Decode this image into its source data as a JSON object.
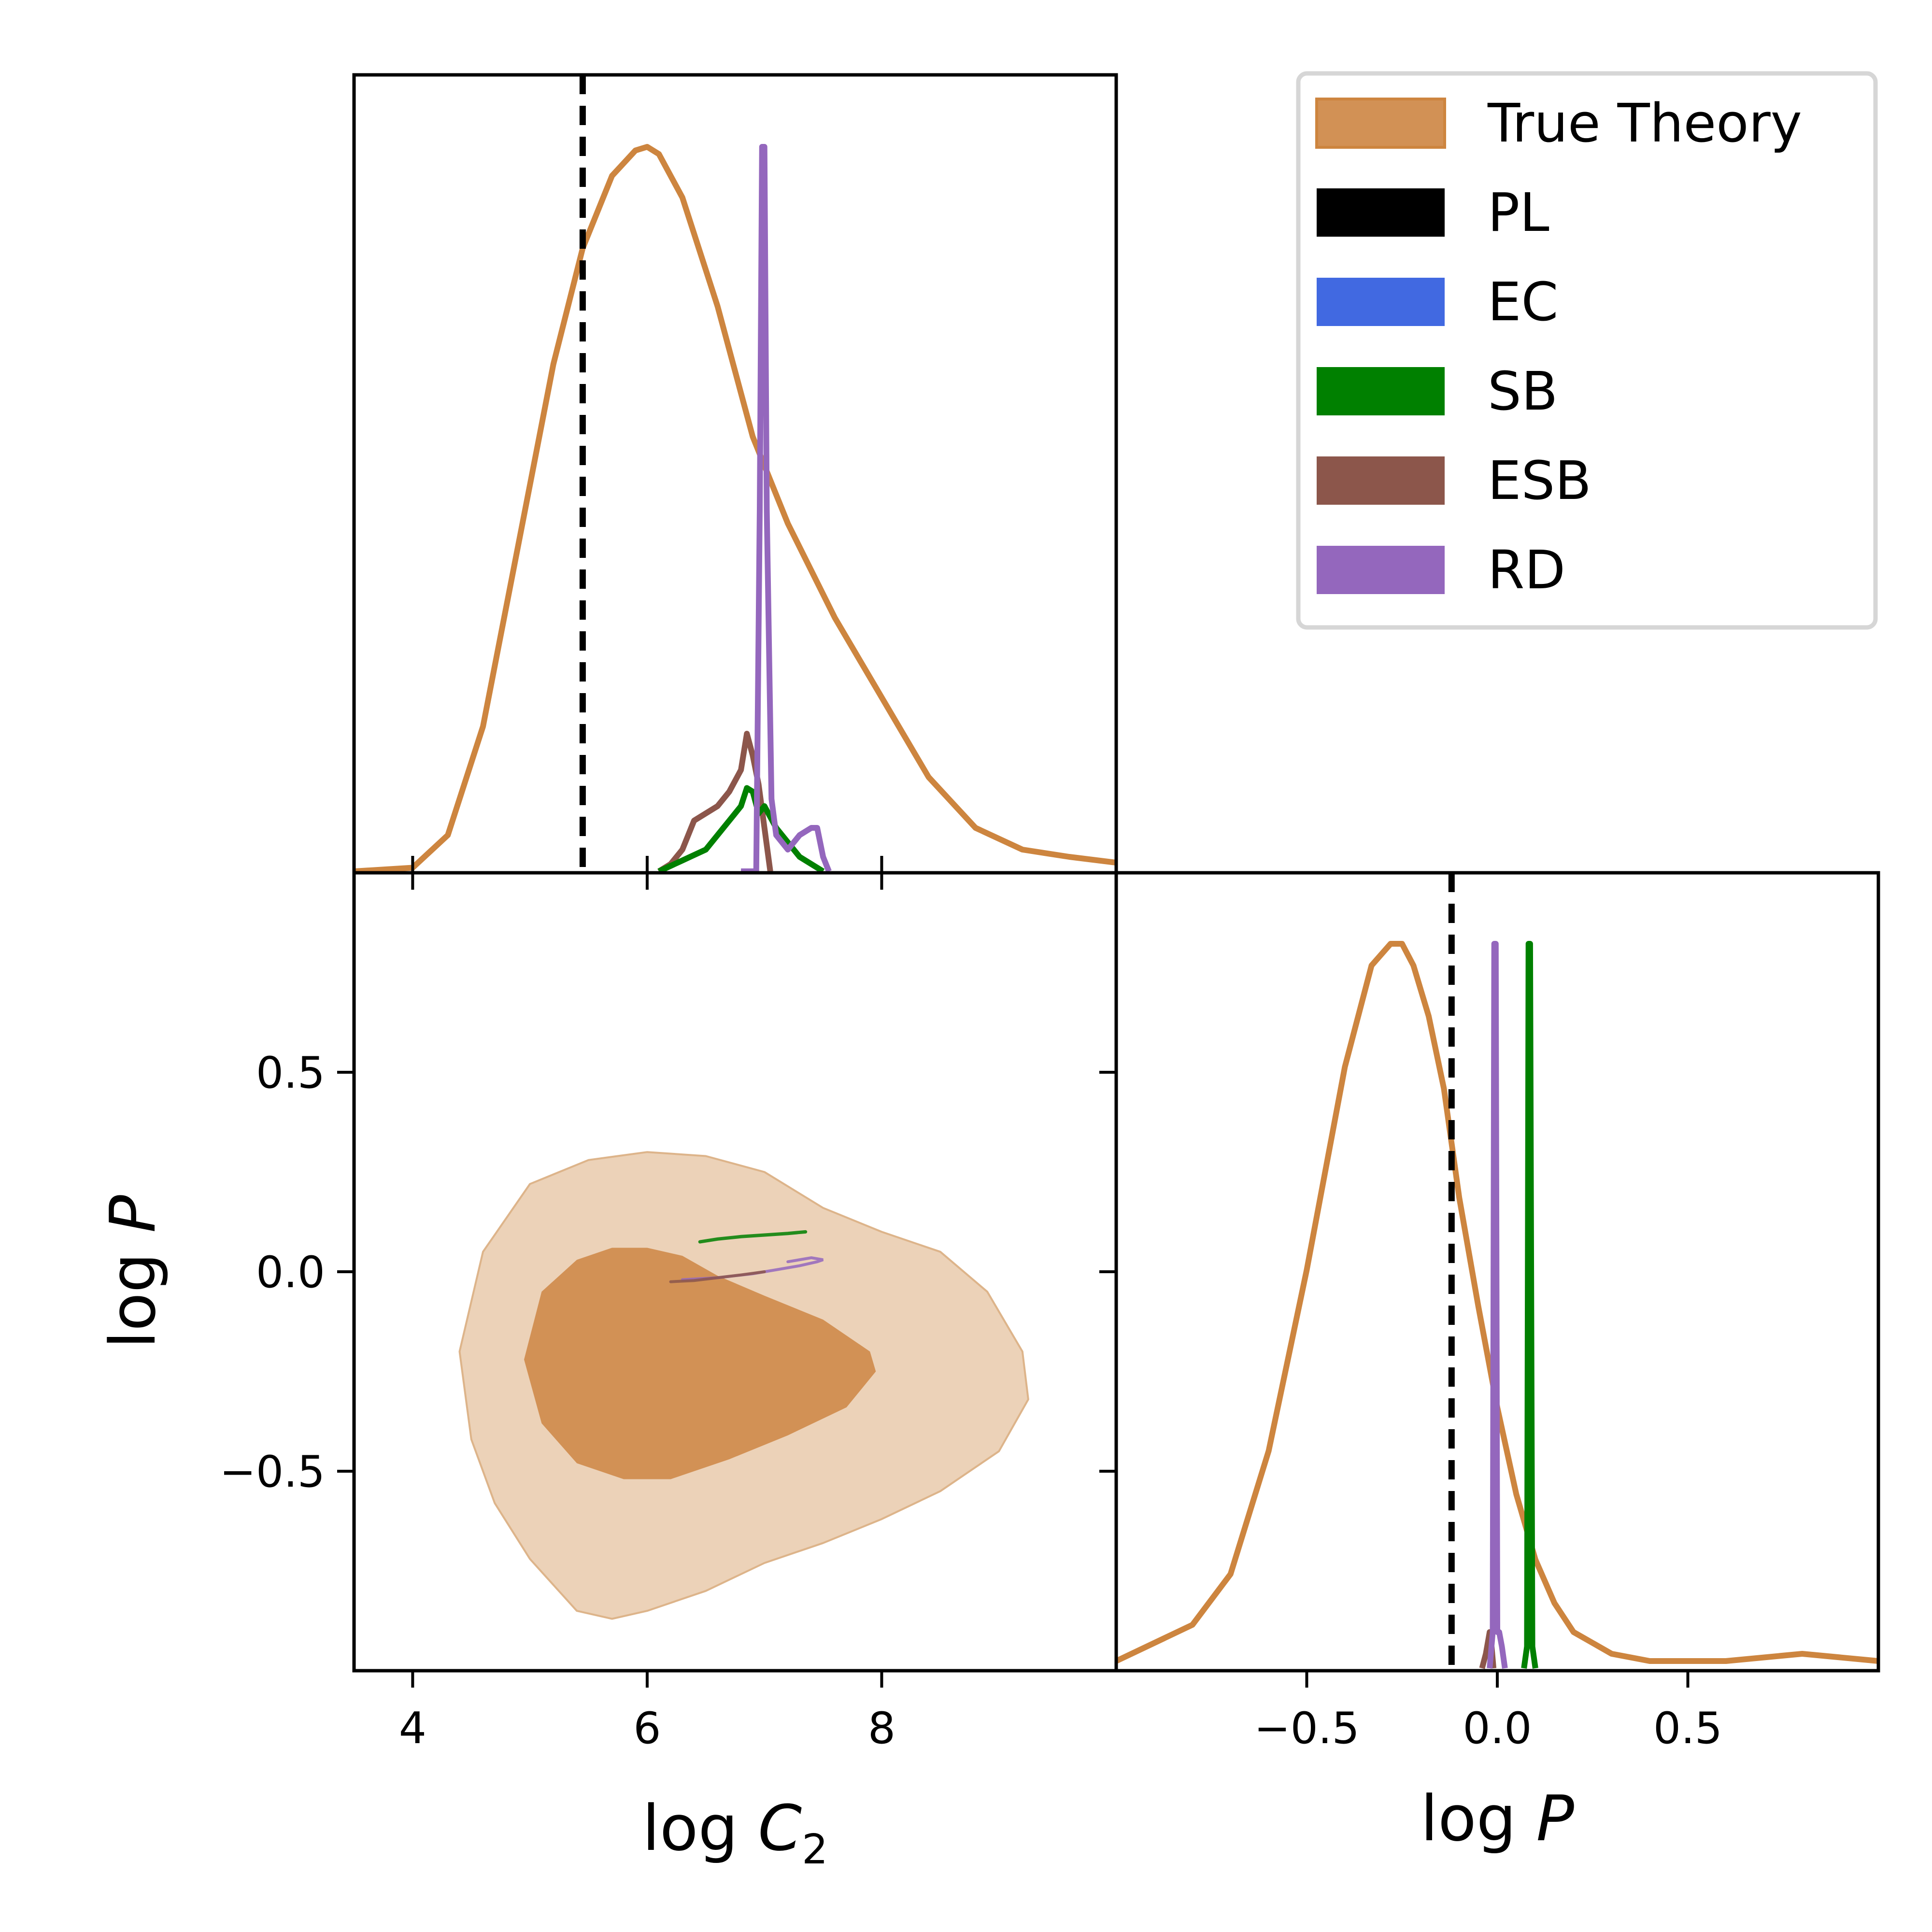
{
  "chart_data": [
    {
      "type": "line",
      "panel": "marginal-logC2",
      "xlim": [
        3.5,
        10.0
      ],
      "x_ticks": [
        4,
        6,
        8
      ],
      "dashed_reference_x": 5.45,
      "series": [
        {
          "name": "True Theory",
          "color": "#cd853f",
          "x": [
            3.5,
            4.0,
            4.3,
            4.6,
            4.9,
            5.2,
            5.45,
            5.7,
            5.9,
            6.0,
            6.1,
            6.3,
            6.6,
            6.9,
            7.2,
            7.6,
            8.0,
            8.4,
            8.8,
            9.2,
            9.6,
            10.0
          ],
          "y": [
            0.0,
            0.005,
            0.05,
            0.2,
            0.45,
            0.7,
            0.86,
            0.96,
            0.995,
            1.0,
            0.99,
            0.93,
            0.78,
            0.6,
            0.48,
            0.35,
            0.24,
            0.13,
            0.06,
            0.03,
            0.02,
            0.012
          ]
        },
        {
          "name": "ESB",
          "color": "#8c564b",
          "x": [
            6.1,
            6.2,
            6.3,
            6.4,
            6.5,
            6.6,
            6.7,
            6.8,
            6.85,
            6.9,
            6.95,
            7.0,
            7.05
          ],
          "y": [
            0.0,
            0.01,
            0.03,
            0.07,
            0.08,
            0.09,
            0.11,
            0.14,
            0.19,
            0.16,
            0.12,
            0.06,
            0.0
          ]
        },
        {
          "name": "SB",
          "color": "#008000",
          "x": [
            6.1,
            6.3,
            6.5,
            6.6,
            6.7,
            6.8,
            6.85,
            6.9,
            6.95,
            7.0,
            7.1,
            7.2,
            7.3,
            7.4,
            7.5
          ],
          "y": [
            0.0,
            0.015,
            0.03,
            0.05,
            0.07,
            0.09,
            0.115,
            0.11,
            0.08,
            0.09,
            0.06,
            0.04,
            0.02,
            0.01,
            0.0
          ]
        },
        {
          "name": "RD",
          "color": "#9467bd",
          "x": [
            6.8,
            6.93,
            6.96,
            6.98,
            7.0,
            7.02,
            7.06,
            7.1,
            7.2,
            7.3,
            7.4,
            7.45,
            7.5,
            7.55
          ],
          "y": [
            0.0,
            0.0,
            0.5,
            1.0,
            1.0,
            0.5,
            0.1,
            0.05,
            0.03,
            0.05,
            0.06,
            0.06,
            0.02,
            0.0
          ]
        }
      ]
    },
    {
      "type": "area",
      "panel": "joint-logC2-logP",
      "xlim": [
        3.5,
        10.0
      ],
      "ylim": [
        -1.0,
        1.0
      ],
      "x_ticks": [
        4,
        6,
        8
      ],
      "y_ticks": [
        0.5,
        0.0,
        -0.5
      ],
      "x_tick_labels": [
        "4",
        "6",
        "8"
      ],
      "y_tick_labels": [
        "0.5",
        "0.0",
        "−0.5"
      ],
      "xlabel_text": "log",
      "xlabel_symbol": "C",
      "xlabel_subscript": "2",
      "ylabel_text": "log",
      "ylabel_symbol": "P",
      "contours": [
        {
          "name": "True Theory 95%",
          "color": "#ecd2b8",
          "x": [
            4.4,
            4.6,
            5.0,
            5.5,
            6.0,
            6.5,
            7.0,
            7.5,
            8.0,
            8.5,
            8.9,
            9.2,
            9.25,
            9.0,
            8.5,
            8.0,
            7.5,
            7.0,
            6.5,
            6.0,
            5.7,
            5.4,
            5.0,
            4.7,
            4.5,
            4.4
          ],
          "y": [
            -0.2,
            0.05,
            0.22,
            0.28,
            0.3,
            0.29,
            0.25,
            0.16,
            0.1,
            0.05,
            -0.05,
            -0.2,
            -0.32,
            -0.45,
            -0.55,
            -0.62,
            -0.68,
            -0.73,
            -0.8,
            -0.85,
            -0.87,
            -0.85,
            -0.72,
            -0.58,
            -0.42,
            -0.2
          ]
        },
        {
          "name": "True Theory 68%",
          "color": "#d29155",
          "x": [
            4.95,
            5.1,
            5.4,
            5.7,
            6.0,
            6.3,
            6.6,
            7.0,
            7.5,
            7.9,
            7.95,
            7.7,
            7.2,
            6.7,
            6.2,
            5.8,
            5.4,
            5.1,
            4.95
          ],
          "y": [
            -0.22,
            -0.05,
            0.03,
            0.06,
            0.06,
            0.04,
            -0.01,
            -0.06,
            -0.12,
            -0.2,
            -0.25,
            -0.34,
            -0.41,
            -0.47,
            -0.52,
            -0.52,
            -0.48,
            -0.38,
            -0.22
          ]
        }
      ],
      "traces": [
        {
          "name": "SB",
          "color": "#008000",
          "x": [
            6.45,
            6.6,
            6.8,
            7.0,
            7.2,
            7.35
          ],
          "y": [
            0.075,
            0.082,
            0.088,
            0.092,
            0.096,
            0.1
          ]
        },
        {
          "name": "RD",
          "color": "#9467bd",
          "x": [
            6.3,
            6.6,
            6.9,
            7.1,
            7.3,
            7.45,
            7.5,
            7.4,
            7.2
          ],
          "y": [
            -0.02,
            -0.015,
            -0.005,
            0.005,
            0.015,
            0.025,
            0.03,
            0.035,
            0.025
          ]
        },
        {
          "name": "ESB",
          "color": "#8c564b",
          "x": [
            6.2,
            6.4,
            6.6,
            6.8,
            7.0
          ],
          "y": [
            -0.025,
            -0.022,
            -0.015,
            -0.008,
            0.0
          ]
        }
      ]
    },
    {
      "type": "line",
      "panel": "marginal-logP",
      "xlim": [
        -1.0,
        1.0
      ],
      "x_ticks": [
        -0.5,
        0.0,
        0.5
      ],
      "x_tick_labels": [
        "−0.5",
        "0.0",
        "0.5"
      ],
      "xlabel_text": "log",
      "xlabel_symbol": "P",
      "dashed_reference_x": -0.12,
      "series": [
        {
          "name": "True Theory",
          "color": "#cd853f",
          "x": [
            -1.0,
            -0.8,
            -0.7,
            -0.6,
            -0.5,
            -0.4,
            -0.33,
            -0.28,
            -0.25,
            -0.22,
            -0.18,
            -0.14,
            -0.1,
            -0.05,
            0.0,
            0.05,
            0.1,
            0.15,
            0.2,
            0.3,
            0.4,
            0.6,
            0.8,
            1.0
          ],
          "y": [
            0.01,
            0.06,
            0.13,
            0.3,
            0.55,
            0.83,
            0.97,
            1.0,
            1.0,
            0.97,
            0.9,
            0.8,
            0.65,
            0.5,
            0.36,
            0.24,
            0.15,
            0.09,
            0.05,
            0.02,
            0.01,
            0.01,
            0.02,
            0.01
          ]
        },
        {
          "name": "ESB",
          "color": "#8c564b",
          "x": [
            -0.04,
            -0.03,
            -0.02,
            -0.015,
            -0.01
          ],
          "y": [
            0.0,
            0.02,
            0.05,
            0.03,
            0.0
          ]
        },
        {
          "name": "RD",
          "color": "#9467bd",
          "x": [
            -0.02,
            -0.012,
            -0.008,
            -0.004,
            0.0,
            0.005,
            0.012,
            0.02
          ],
          "y": [
            0.0,
            0.05,
            1.0,
            1.0,
            0.05,
            0.05,
            0.03,
            0.0
          ]
        },
        {
          "name": "SB",
          "color": "#008000",
          "x": [
            0.07,
            0.078,
            0.082,
            0.086,
            0.092,
            0.1
          ],
          "y": [
            0.0,
            0.03,
            1.0,
            1.0,
            0.03,
            0.0
          ]
        }
      ]
    }
  ],
  "legend": {
    "entries": [
      {
        "label": "True Theory",
        "color": "#d29155"
      },
      {
        "label": "PL",
        "color": "#000000"
      },
      {
        "label": "EC",
        "color": "#4169e1"
      },
      {
        "label": "SB",
        "color": "#008000"
      },
      {
        "label": "ESB",
        "color": "#8c564b"
      },
      {
        "label": "RD",
        "color": "#9467bd"
      }
    ]
  }
}
